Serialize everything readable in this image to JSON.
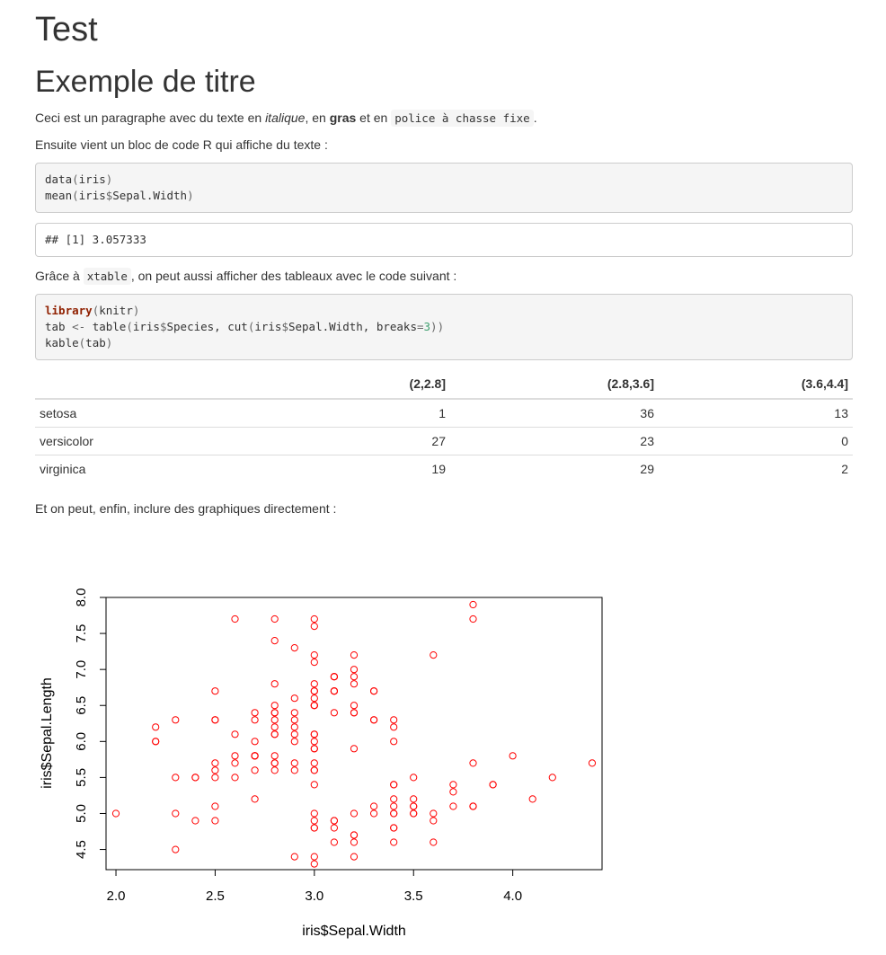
{
  "title": "Test",
  "section_title": "Exemple de titre",
  "intro": {
    "part1": "Ceci est un paragraphe avec du texte en ",
    "italic": "italique",
    "part2": ", en ",
    "bold": "gras",
    "part3": " et en ",
    "mono": "police à chasse fixe",
    "part4": "."
  },
  "para_code": "Ensuite vient un bloc de code R qui affiche du texte :",
  "code1": {
    "line1_fn": "data",
    "line1_open": "(",
    "line1_arg": "iris",
    "line1_close": ")",
    "line2_fn": "mean",
    "line2_open": "(",
    "line2_a": "iris",
    "line2_dollar": "$",
    "line2_b": "Sepal.Width",
    "line2_close": ")"
  },
  "output1": "## [1] 3.057333",
  "para_xtable": {
    "before": "Grâce à ",
    "code": "xtable",
    "after": ", on peut aussi afficher des tableaux avec le code suivant :"
  },
  "code2": {
    "l1_kw": "library",
    "l1_open": "(",
    "l1_arg": "knitr",
    "l1_close": ")",
    "l2_a": "tab ",
    "l2_op": "<-",
    "l2_b": " table",
    "l2_open": "(",
    "l2_c": "iris",
    "l2_dollar": "$",
    "l2_d": "Species, cut",
    "l2_open2": "(",
    "l2_e": "iris",
    "l2_dollar2": "$",
    "l2_f": "Sepal.Width, breaks",
    "l2_eq": "=",
    "l2_num": "3",
    "l2_close": "))",
    "l3_fn": "kable",
    "l3_open": "(",
    "l3_arg": "tab",
    "l3_close": ")"
  },
  "table": {
    "headers": [
      "",
      "(2,2.8]",
      "(2.8,3.6]",
      "(3.6,4.4]"
    ],
    "rows": [
      [
        "setosa",
        "1",
        "36",
        "13"
      ],
      [
        "versicolor",
        "27",
        "23",
        "0"
      ],
      [
        "virginica",
        "19",
        "29",
        "2"
      ]
    ]
  },
  "para_graph": "Et on peut, enfin, inclure des graphiques directement :",
  "chart_data": {
    "type": "scatter",
    "xlabel": "iris$Sepal.Width",
    "ylabel": "iris$Sepal.Length",
    "xlim": [
      1.95,
      4.45
    ],
    "ylim": [
      4.22,
      8.0
    ],
    "xticks": [
      "2.0",
      "2.5",
      "3.0",
      "3.5",
      "4.0"
    ],
    "yticks": [
      "4.5",
      "5.0",
      "5.5",
      "6.0",
      "6.5",
      "7.0",
      "7.5",
      "8.0"
    ],
    "point_color": "#ff0000",
    "points": [
      [
        3.5,
        5.1
      ],
      [
        3.0,
        4.9
      ],
      [
        3.2,
        4.7
      ],
      [
        3.1,
        4.6
      ],
      [
        3.6,
        5.0
      ],
      [
        3.9,
        5.4
      ],
      [
        3.4,
        4.6
      ],
      [
        3.4,
        5.0
      ],
      [
        2.9,
        4.4
      ],
      [
        3.1,
        4.9
      ],
      [
        3.7,
        5.4
      ],
      [
        3.4,
        4.8
      ],
      [
        3.0,
        4.8
      ],
      [
        3.0,
        4.3
      ],
      [
        4.0,
        5.8
      ],
      [
        4.4,
        5.7
      ],
      [
        3.9,
        5.4
      ],
      [
        3.5,
        5.1
      ],
      [
        3.8,
        5.7
      ],
      [
        3.8,
        5.1
      ],
      [
        3.4,
        5.4
      ],
      [
        3.7,
        5.1
      ],
      [
        3.6,
        4.6
      ],
      [
        3.3,
        5.1
      ],
      [
        3.4,
        4.8
      ],
      [
        3.0,
        5.0
      ],
      [
        3.4,
        5.0
      ],
      [
        3.5,
        5.2
      ],
      [
        3.4,
        5.2
      ],
      [
        3.2,
        4.7
      ],
      [
        3.1,
        4.8
      ],
      [
        3.4,
        5.4
      ],
      [
        4.1,
        5.2
      ],
      [
        4.2,
        5.5
      ],
      [
        3.1,
        4.9
      ],
      [
        3.2,
        5.0
      ],
      [
        3.5,
        5.5
      ],
      [
        3.6,
        4.9
      ],
      [
        3.0,
        4.4
      ],
      [
        3.4,
        5.1
      ],
      [
        3.5,
        5.0
      ],
      [
        2.3,
        4.5
      ],
      [
        3.2,
        4.4
      ],
      [
        3.5,
        5.0
      ],
      [
        3.8,
        5.1
      ],
      [
        3.0,
        4.8
      ],
      [
        3.8,
        5.1
      ],
      [
        3.2,
        4.6
      ],
      [
        3.7,
        5.3
      ],
      [
        3.3,
        5.0
      ],
      [
        3.2,
        7.0
      ],
      [
        3.2,
        6.4
      ],
      [
        3.1,
        6.9
      ],
      [
        2.3,
        5.5
      ],
      [
        2.8,
        6.5
      ],
      [
        2.8,
        5.7
      ],
      [
        3.3,
        6.3
      ],
      [
        2.4,
        4.9
      ],
      [
        2.9,
        6.6
      ],
      [
        2.7,
        5.2
      ],
      [
        2.0,
        5.0
      ],
      [
        3.0,
        5.9
      ],
      [
        2.2,
        6.0
      ],
      [
        2.9,
        6.1
      ],
      [
        2.9,
        5.6
      ],
      [
        3.1,
        6.7
      ],
      [
        3.0,
        5.6
      ],
      [
        2.7,
        5.8
      ],
      [
        2.2,
        6.2
      ],
      [
        2.5,
        5.6
      ],
      [
        3.2,
        5.9
      ],
      [
        2.8,
        6.1
      ],
      [
        2.5,
        6.3
      ],
      [
        2.8,
        6.1
      ],
      [
        2.9,
        6.4
      ],
      [
        3.0,
        6.6
      ],
      [
        2.8,
        6.8
      ],
      [
        3.0,
        6.7
      ],
      [
        2.9,
        6.0
      ],
      [
        2.6,
        5.7
      ],
      [
        2.4,
        5.5
      ],
      [
        2.4,
        5.5
      ],
      [
        2.7,
        5.8
      ],
      [
        2.7,
        6.0
      ],
      [
        3.0,
        5.4
      ],
      [
        3.4,
        6.0
      ],
      [
        3.1,
        6.7
      ],
      [
        2.3,
        6.3
      ],
      [
        3.0,
        5.6
      ],
      [
        2.5,
        5.5
      ],
      [
        2.6,
        5.5
      ],
      [
        3.0,
        6.1
      ],
      [
        2.6,
        5.8
      ],
      [
        2.3,
        5.0
      ],
      [
        2.7,
        5.6
      ],
      [
        3.0,
        5.7
      ],
      [
        2.9,
        5.7
      ],
      [
        2.9,
        6.2
      ],
      [
        2.5,
        5.1
      ],
      [
        2.8,
        5.7
      ],
      [
        3.3,
        6.3
      ],
      [
        2.7,
        5.8
      ],
      [
        3.0,
        7.1
      ],
      [
        2.9,
        6.3
      ],
      [
        3.0,
        6.5
      ],
      [
        3.0,
        7.6
      ],
      [
        2.5,
        4.9
      ],
      [
        2.9,
        7.3
      ],
      [
        2.5,
        6.7
      ],
      [
        3.6,
        7.2
      ],
      [
        3.2,
        6.5
      ],
      [
        2.7,
        6.4
      ],
      [
        3.0,
        6.8
      ],
      [
        2.5,
        5.7
      ],
      [
        2.8,
        5.8
      ],
      [
        3.2,
        6.4
      ],
      [
        3.0,
        6.5
      ],
      [
        3.8,
        7.7
      ],
      [
        2.6,
        7.7
      ],
      [
        2.2,
        6.0
      ],
      [
        3.2,
        6.9
      ],
      [
        2.8,
        5.6
      ],
      [
        2.8,
        7.7
      ],
      [
        2.7,
        6.3
      ],
      [
        3.3,
        6.7
      ],
      [
        3.2,
        7.2
      ],
      [
        2.8,
        6.2
      ],
      [
        3.0,
        6.1
      ],
      [
        2.8,
        6.4
      ],
      [
        3.0,
        7.2
      ],
      [
        2.8,
        7.4
      ],
      [
        3.8,
        7.9
      ],
      [
        2.8,
        6.4
      ],
      [
        2.8,
        6.3
      ],
      [
        2.6,
        6.1
      ],
      [
        3.0,
        7.7
      ],
      [
        3.4,
        6.3
      ],
      [
        3.1,
        6.4
      ],
      [
        3.0,
        6.0
      ],
      [
        3.1,
        6.9
      ],
      [
        3.1,
        6.7
      ],
      [
        3.1,
        6.9
      ],
      [
        2.7,
        5.8
      ],
      [
        3.2,
        6.8
      ],
      [
        3.3,
        6.7
      ],
      [
        3.0,
        6.7
      ],
      [
        2.5,
        6.3
      ],
      [
        3.0,
        6.5
      ],
      [
        3.4,
        6.2
      ],
      [
        3.0,
        5.9
      ]
    ]
  }
}
